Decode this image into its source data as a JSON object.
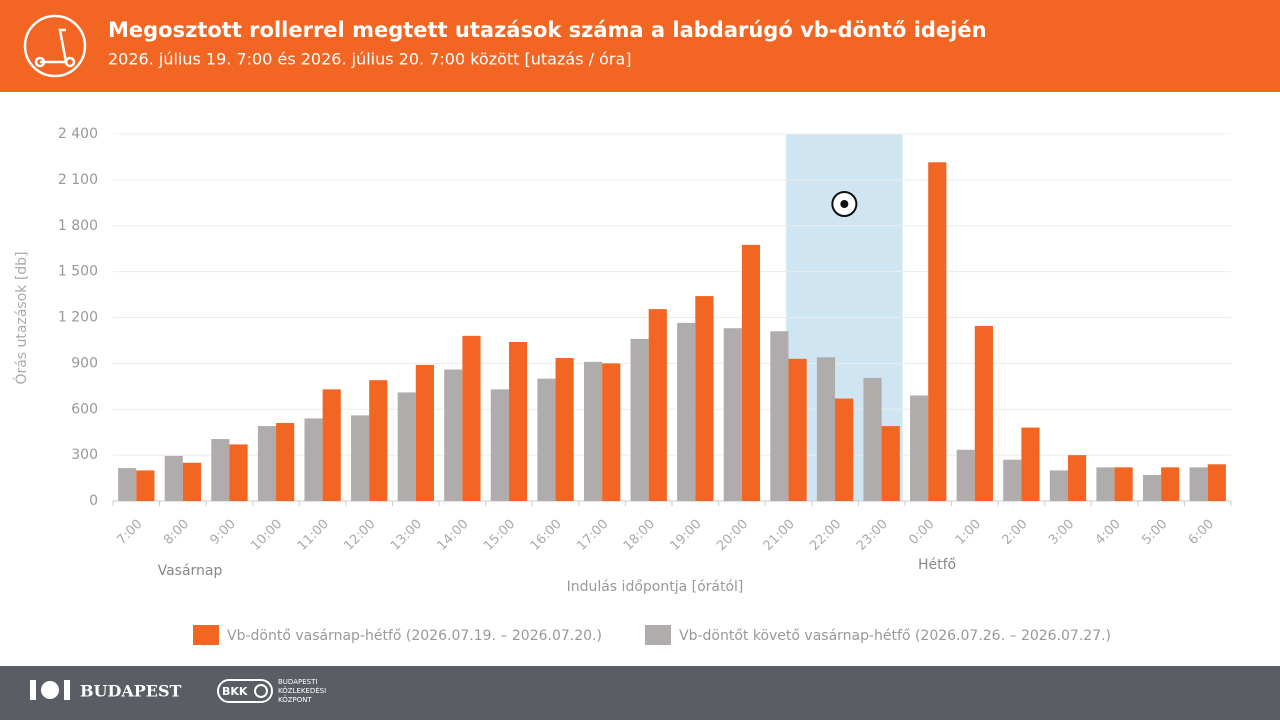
{
  "chart_data": {
    "type": "bar",
    "title": "Megosztott rollerrel megtett utazások száma a labdarúgó vb-döntő idején",
    "subtitle": "2026. július 19. 7:00 és 2026. július 20. 7:00 között  [utazás / óra]",
    "y_label": "Órás  utazások [db]",
    "x_label": "Indulás időpontja [órától]",
    "day_labels": [
      "Vasárnap",
      "Hétfő"
    ],
    "categories": [
      "7:00",
      "8:00",
      "9:00",
      "10:00",
      "11:00",
      "12:00",
      "13:00",
      "14:00",
      "15:00",
      "16:00",
      "17:00",
      "18:00",
      "19:00",
      "20:00",
      "21:00",
      "22:00",
      "23:00",
      "0:00",
      "1:00",
      "2:00",
      "3:00",
      "4:00",
      "5:00",
      "6:00"
    ],
    "series": [
      {
        "name": "Vb-döntőt követő vasárnap-hétfő (2026.07.26. – 2026.07.27.)",
        "color": "#b1acac",
        "values": [
          215,
          295,
          405,
          490,
          540,
          560,
          710,
          860,
          730,
          800,
          910,
          1060,
          1165,
          1130,
          1110,
          940,
          805,
          690,
          335,
          270,
          200,
          220,
          170,
          220
        ]
      },
      {
        "name": "Vb-döntő vasárnap-hétfő (2026.07.19. – 2026.07.20.)",
        "color": "#f26522",
        "values": [
          200,
          250,
          370,
          510,
          730,
          790,
          890,
          1080,
          1040,
          935,
          900,
          1255,
          1340,
          1675,
          930,
          670,
          490,
          2215,
          1145,
          480,
          300,
          220,
          220,
          240
        ]
      }
    ],
    "ylim": [
      0,
      2400
    ],
    "yticks": [
      0,
      300,
      600,
      900,
      {
        "value": 1200,
        "label": "1 200"
      },
      {
        "value": 1500,
        "label": "1 500"
      },
      {
        "value": 1800,
        "label": "1 800"
      },
      {
        "value": 2100,
        "label": "2 100"
      },
      {
        "value": 2400,
        "label": "2 400"
      }
    ],
    "grid": true
  },
  "footer": {
    "city": "BUDAPEST",
    "bkk": "BKK",
    "bkk_name": [
      "BUDAPESTI",
      "KÖZLEKEDÉSI",
      "KÖZPONT"
    ]
  }
}
